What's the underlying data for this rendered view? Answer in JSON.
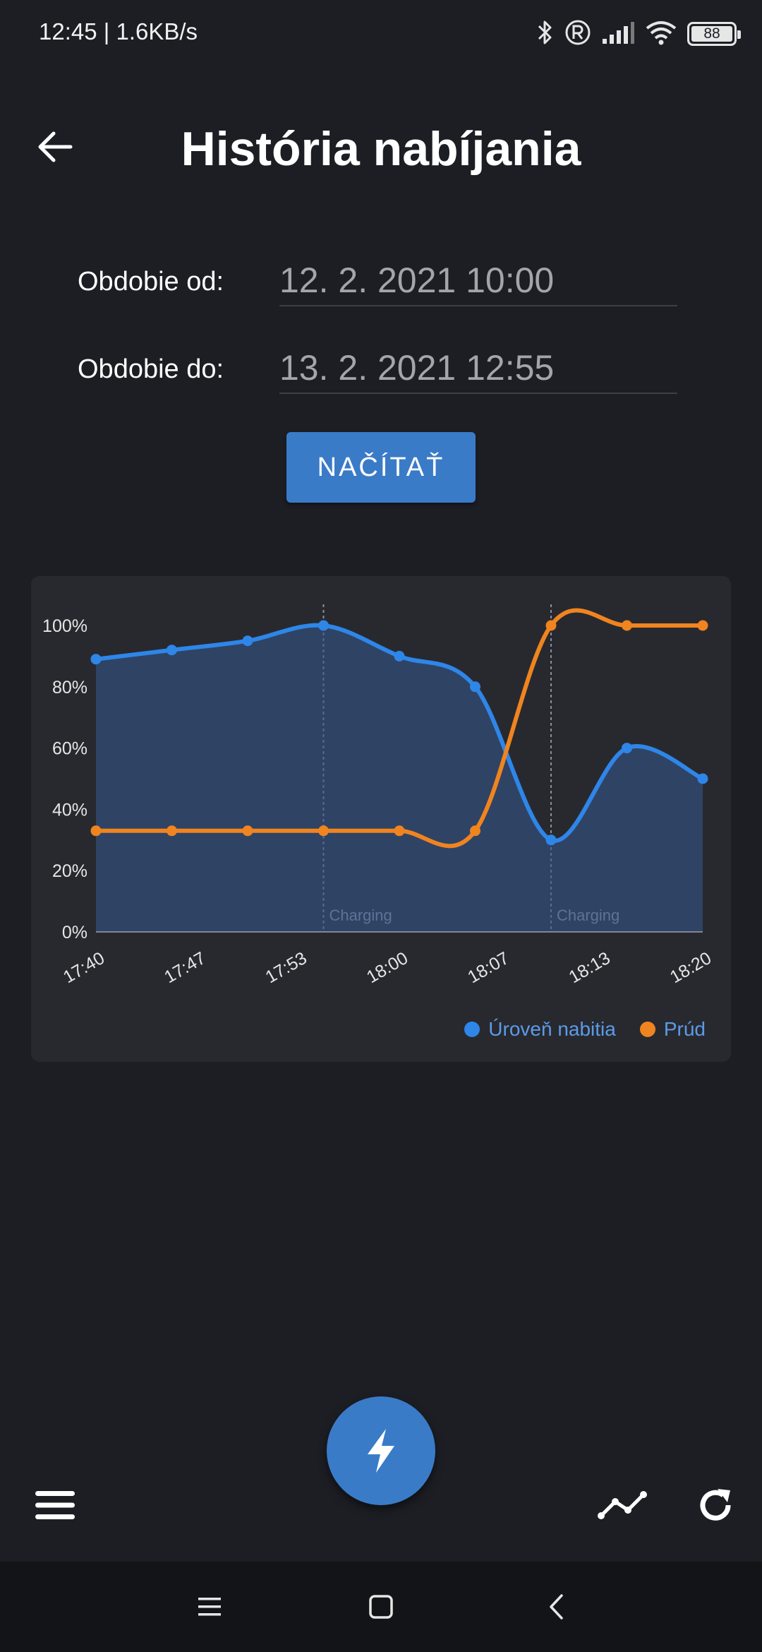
{
  "status_bar": {
    "time": "12:45 | 1.6KB/s",
    "battery": "88",
    "icons": [
      "bluetooth-icon",
      "registered-icon",
      "signal-icon",
      "wifi-icon",
      "battery-icon"
    ]
  },
  "header": {
    "title": "História nabíjania",
    "back_icon": "arrow-left-icon"
  },
  "form": {
    "from_label": "Obdobie od:",
    "from_value": "12. 2. 2021 10:00",
    "to_label": "Obdobie do:",
    "to_value": "13. 2. 2021 12:55",
    "load_label": "NAČÍTAŤ"
  },
  "colors": {
    "accent": "#3a7bc8",
    "level_series": "#2e86e8",
    "current_series": "#f0841f",
    "background": "#1c1e24",
    "card": "#28292f"
  },
  "chart_data": {
    "type": "line",
    "x": [
      "17:40",
      "17:47",
      "17:53",
      "18:00",
      "18:07",
      "18:13",
      "18:20"
    ],
    "y_ticks": [
      "0%",
      "20%",
      "40%",
      "60%",
      "80%",
      "100%"
    ],
    "ylim": [
      0,
      100
    ],
    "x_range": [
      0,
      8
    ],
    "series": [
      {
        "name": "Úroveň nabitia",
        "color": "#2e86e8",
        "points": [
          [
            0,
            89
          ],
          [
            1,
            92
          ],
          [
            2,
            95
          ],
          [
            3,
            100
          ],
          [
            4,
            90
          ],
          [
            5,
            80
          ],
          [
            6,
            30
          ],
          [
            7,
            60
          ],
          [
            8,
            50
          ]
        ]
      },
      {
        "name": "Prúd",
        "color": "#f0841f",
        "points": [
          [
            0,
            33
          ],
          [
            1,
            33
          ],
          [
            2,
            33
          ],
          [
            3,
            33
          ],
          [
            4,
            33
          ],
          [
            5,
            33
          ],
          [
            6,
            100
          ],
          [
            7,
            100
          ],
          [
            8,
            100
          ]
        ]
      }
    ],
    "annotations": [
      {
        "x": 3,
        "label": "Charging"
      },
      {
        "x": 6,
        "label": "Charging"
      }
    ],
    "legend_position": "bottom-right",
    "grid": false
  },
  "bottom_bar": {
    "menu_icon": "hamburger-menu-icon",
    "fab_icon": "lightning-bolt-icon",
    "chart_icon": "line-chart-icon",
    "refresh_icon": "refresh-icon"
  },
  "nav_bar": {
    "icons": [
      "recent-apps-icon",
      "home-icon",
      "back-icon"
    ]
  }
}
